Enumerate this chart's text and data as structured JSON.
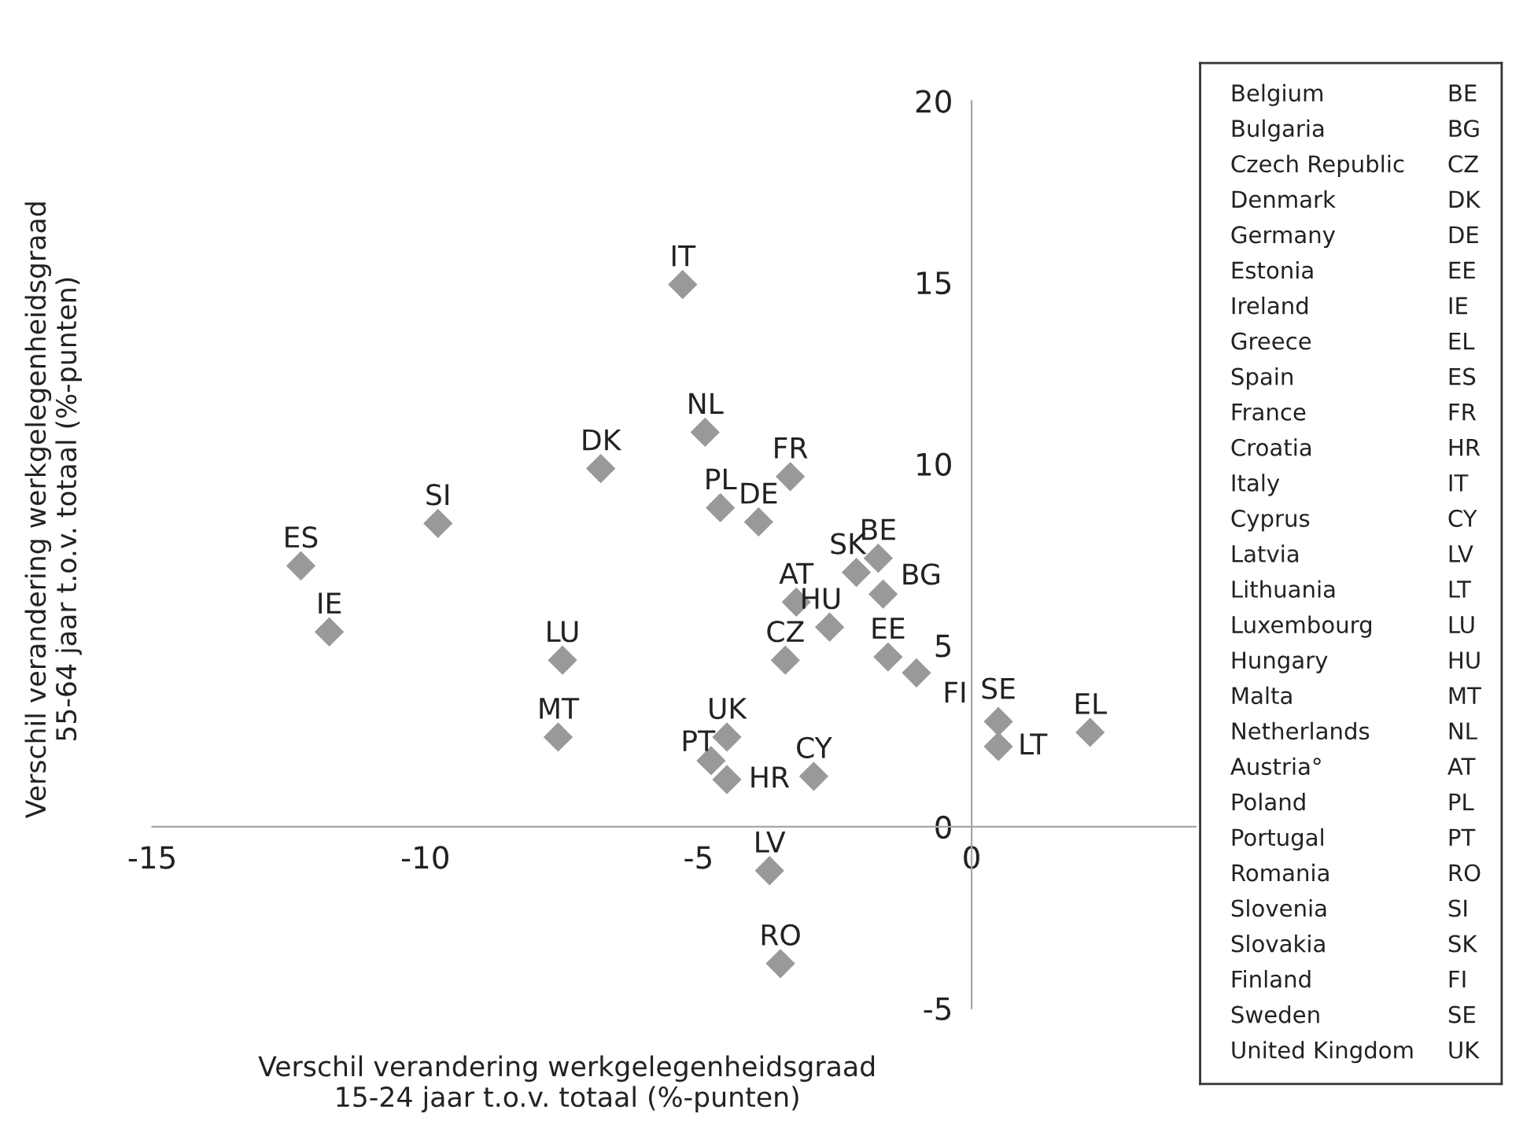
{
  "chart_data": [
    {
      "type": "scatter",
      "xlabel": "Verschil verandering werkgelegenheidsgraad\n15-24 jaar t.o.v. totaal (%-punten)",
      "ylabel": "Verschil verandering werkgelegenheidsgraad\n55-64 jaar t.o.v. totaal (%-punten)",
      "marker": "diamond",
      "grid": false,
      "xlim": [
        -15,
        4.1
      ],
      "xticks": [
        -15,
        -10,
        -5,
        0
      ],
      "ylim": [
        -5,
        20
      ],
      "yticks": [
        -5,
        0,
        5,
        10,
        15,
        20
      ],
      "series": [
        {
          "color": "#999999",
          "x": [
            -12.28,
            -11.76,
            -9.77,
            -6.79,
            -7.49,
            -7.57,
            -5.29,
            -4.88,
            -3.32,
            -4.6,
            -3.9,
            -2.11,
            -1.71,
            -1.62,
            -3.21,
            -2.6,
            -3.41,
            -1.53,
            -1.01,
            -4.48,
            -4.77,
            -4.48,
            -2.89,
            0.49,
            0.49,
            2.17,
            -3.7,
            -3.5
          ],
          "values": [
            7.19,
            5.37,
            8.36,
            9.87,
            4.59,
            2.47,
            14.94,
            10.87,
            9.65,
            8.79,
            8.4,
            7.01,
            7.4,
            6.41,
            6.19,
            5.5,
            4.59,
            4.68,
            4.24,
            2.47,
            1.82,
            1.3,
            1.39,
            2.9,
            2.21,
            2.6,
            -1.21,
            -3.77
          ]
        }
      ],
      "annotations": [
        {
          "text": "ES",
          "x": -12.28,
          "y": 7.19
        },
        {
          "text": "IE",
          "x": -11.76,
          "y": 5.37
        },
        {
          "text": "SI",
          "x": -9.77,
          "y": 8.36
        },
        {
          "text": "DK",
          "x": -6.79,
          "y": 9.87
        },
        {
          "text": "LU",
          "x": -7.49,
          "y": 4.59
        },
        {
          "text": "MT",
          "x": -7.57,
          "y": 2.47
        },
        {
          "text": "IT",
          "x": -5.29,
          "y": 14.94
        },
        {
          "text": "NL",
          "x": -4.88,
          "y": 10.87
        },
        {
          "text": "FR",
          "x": -3.32,
          "y": 9.65
        },
        {
          "text": "PL",
          "x": -4.6,
          "y": 8.79
        },
        {
          "text": "DE",
          "x": -3.9,
          "y": 8.4
        },
        {
          "text": "SK",
          "x": -2.11,
          "y": 7.01
        },
        {
          "text": "BE",
          "x": -1.71,
          "y": 7.4
        },
        {
          "text": "BG",
          "x": -1.62,
          "y": 6.41
        },
        {
          "text": "AT",
          "x": -3.21,
          "y": 6.19
        },
        {
          "text": "HU",
          "x": -2.6,
          "y": 5.5
        },
        {
          "text": "CZ",
          "x": -3.41,
          "y": 4.59
        },
        {
          "text": "EE",
          "x": -1.53,
          "y": 4.68
        },
        {
          "text": "FI",
          "x": -1.01,
          "y": 4.24
        },
        {
          "text": "UK",
          "x": -4.48,
          "y": 2.47
        },
        {
          "text": "PT",
          "x": -4.77,
          "y": 1.82
        },
        {
          "text": "HR",
          "x": -4.48,
          "y": 1.3
        },
        {
          "text": "CY",
          "x": -2.89,
          "y": 1.39
        },
        {
          "text": "SE",
          "x": 0.49,
          "y": 2.9
        },
        {
          "text": "LT",
          "x": 0.49,
          "y": 2.21
        },
        {
          "text": "EL",
          "x": 2.17,
          "y": 2.6
        },
        {
          "text": "LV",
          "x": -3.7,
          "y": -1.21
        },
        {
          "text": "RO",
          "x": -3.5,
          "y": -3.77
        }
      ]
    },
    {
      "type": "other",
      "annotations": [
        "Belgium",
        "BE",
        "Bulgaria",
        "BG",
        "Czech Republic",
        "CZ",
        "Denmark",
        "DK",
        "Germany",
        "DE",
        "Estonia",
        "EE",
        "Ireland",
        "IE",
        "Greece",
        "EL",
        "Spain",
        "ES",
        "France",
        "FR",
        "Croatia",
        "HR",
        "Italy",
        "IT",
        "Cyprus",
        "CY",
        "Latvia",
        "LV",
        "Lithuania",
        "LT",
        "Luxembourg",
        "LU",
        "Hungary",
        "HU",
        "Malta",
        "MT",
        "Netherlands",
        "NL",
        "Austria°",
        "AT",
        "Poland",
        "PL",
        "Portugal",
        "PT",
        "Romania",
        "RO",
        "Slovenia",
        "SI",
        "Slovakia",
        "SK",
        "Finland",
        "FI",
        "Sweden",
        "SE",
        "United Kingdom",
        "UK"
      ]
    }
  ]
}
